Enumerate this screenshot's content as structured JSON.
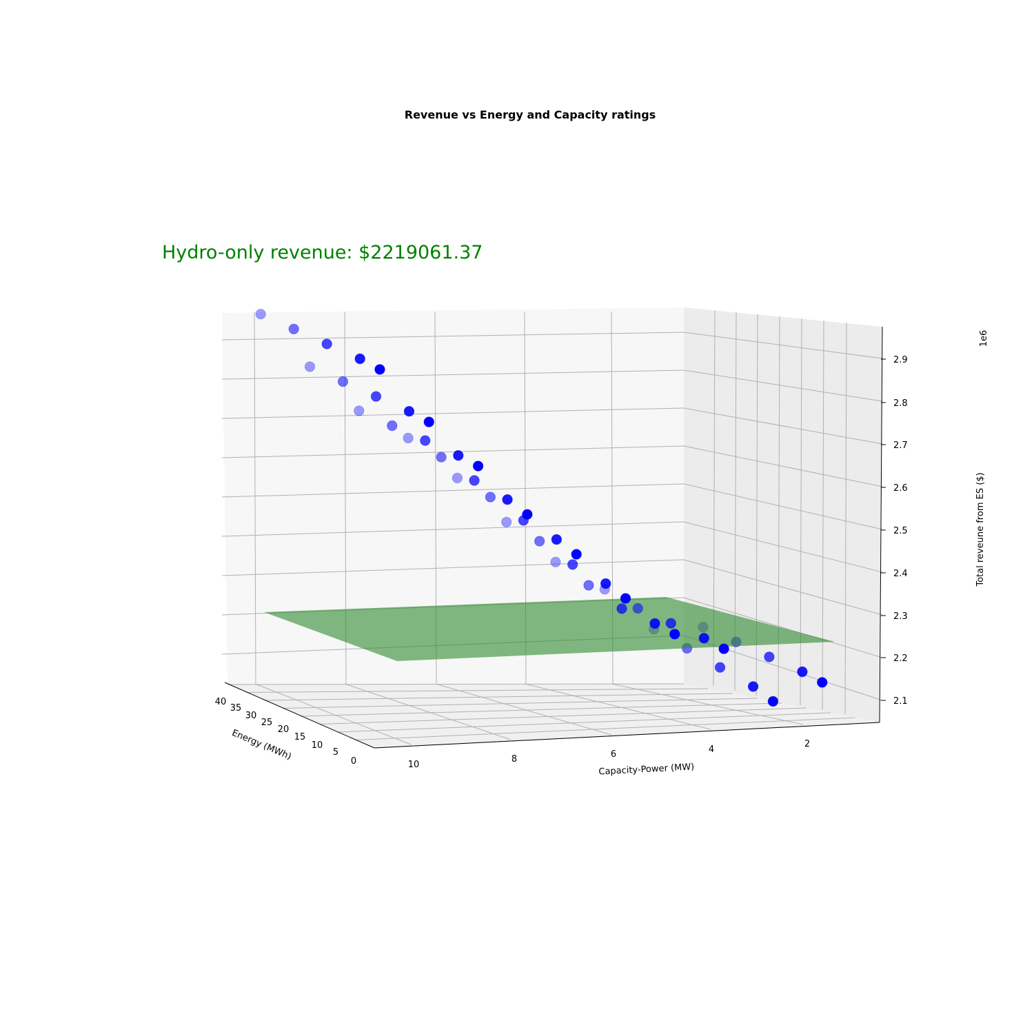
{
  "chart_data": {
    "type": "scatter3d",
    "title": "Revenue vs Energy and Capacity ratings",
    "annotation": "Hydro-only revenue: $2219061.37",
    "annotation_color": "#008000",
    "xlabel": "Energy (MWh)",
    "ylabel": "Capacity-Power (MW)",
    "zlabel": "Total reveune from ES ($)",
    "z_offset_text": "1e6",
    "x_ticks": [
      "0",
      "5",
      "10",
      "15",
      "20",
      "25",
      "30",
      "35",
      "40"
    ],
    "y_ticks": [
      "10",
      "8",
      "6",
      "4",
      "2"
    ],
    "z_ticks": [
      "2.1",
      "2.2",
      "2.3",
      "2.4",
      "2.5",
      "2.6",
      "2.7",
      "2.8",
      "2.9"
    ],
    "xlim": [
      0,
      40
    ],
    "ylim": [
      1,
      10
    ],
    "zlim": [
      2.05,
      2.95
    ],
    "plane_z": 2.219061,
    "plane_color": "#2e8b2e",
    "marker_color": "#0000ff",
    "grid": true,
    "series": [
      {
        "energy": [
          40,
          30,
          20,
          10,
          4,
          40,
          30,
          20,
          10,
          4,
          40,
          30,
          20,
          10,
          4,
          40,
          30,
          20,
          10,
          4,
          40,
          30,
          20,
          10,
          4,
          40,
          30,
          20,
          10,
          4,
          40,
          30,
          20,
          10,
          4,
          40,
          30,
          20,
          10,
          4,
          40,
          30,
          20,
          10,
          4,
          40,
          30,
          20,
          10,
          4
        ],
        "power": [
          10,
          10,
          10,
          10,
          10,
          9,
          9,
          9,
          9,
          9,
          8,
          8,
          8,
          8,
          8,
          7,
          7,
          7,
          7,
          7,
          6,
          6,
          6,
          6,
          6,
          5,
          5,
          5,
          5,
          5,
          4,
          4,
          4,
          4,
          4,
          3,
          3,
          3,
          3,
          3,
          2,
          2,
          2,
          2,
          2,
          1,
          1,
          1,
          1,
          1
        ],
        "revenue": [
          2.9,
          2.89,
          2.88,
          2.87,
          2.86,
          2.78,
          2.77,
          2.76,
          2.75,
          2.74,
          2.68,
          2.67,
          2.66,
          2.65,
          2.64,
          2.62,
          2.6,
          2.57,
          2.55,
          2.53,
          2.53,
          2.51,
          2.48,
          2.46,
          2.44,
          2.43,
          2.41,
          2.38,
          2.36,
          2.34,
          2.34,
          2.31,
          2.28,
          2.27,
          2.26,
          2.28,
          2.26,
          2.25,
          2.24,
          2.23,
          2.19,
          2.17,
          2.15,
          2.13,
          2.11,
          2.2,
          2.19,
          2.18,
          2.17,
          2.16
        ]
      }
    ]
  }
}
